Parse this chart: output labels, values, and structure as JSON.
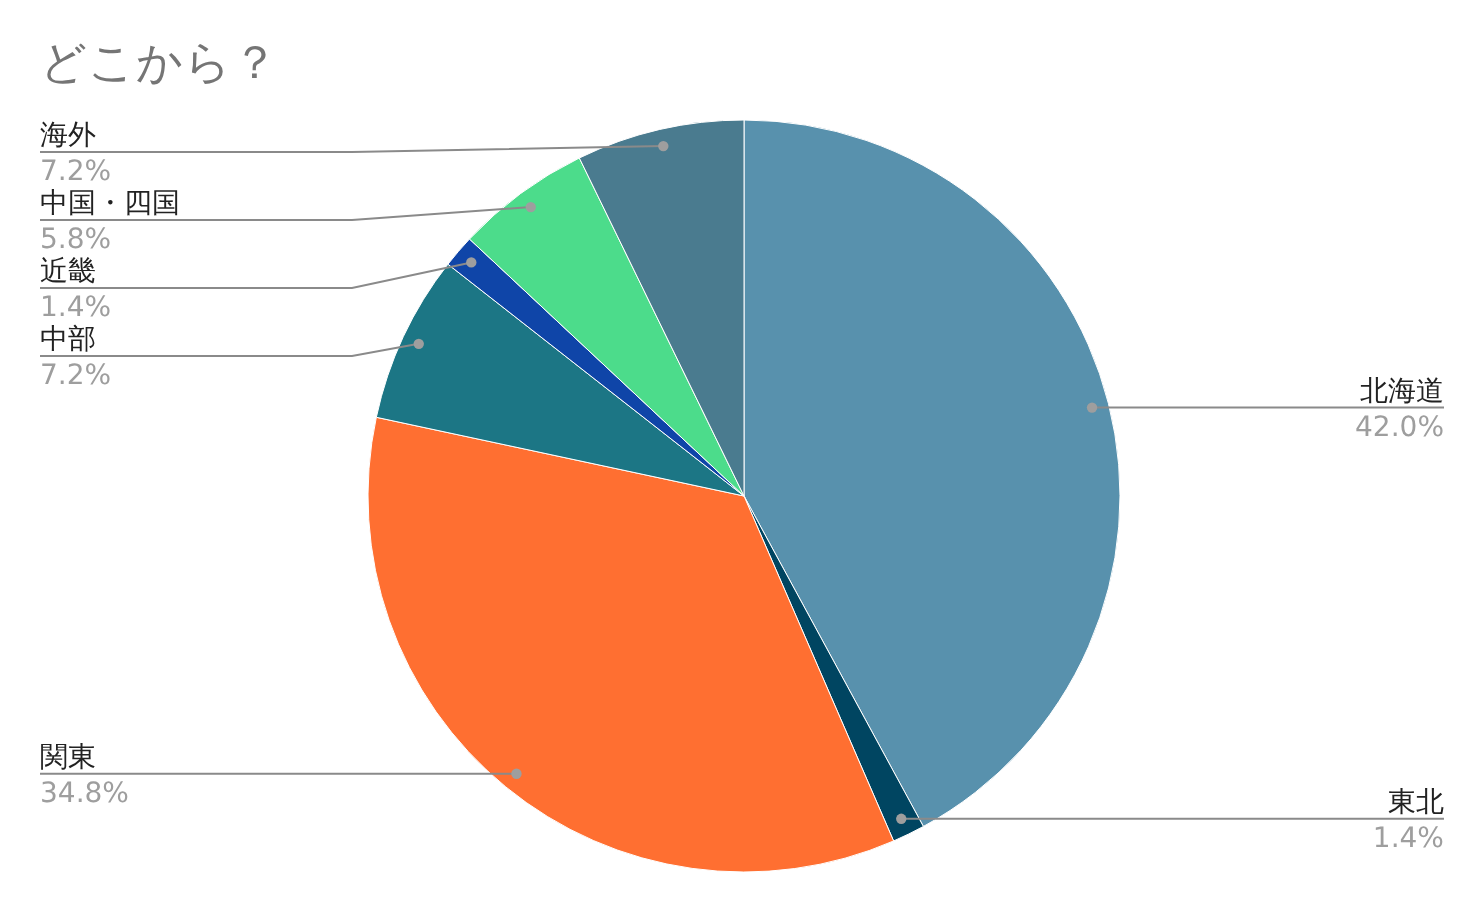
{
  "chart_data": {
    "type": "pie",
    "title": "どこから？",
    "categories": [
      "北海道",
      "東北",
      "関東",
      "中部",
      "近畿",
      "中国・四国",
      "海外"
    ],
    "values": [
      42.0,
      1.4,
      34.8,
      7.2,
      1.4,
      5.8,
      7.2
    ],
    "colors": [
      "#5891ad",
      "#004561",
      "#ff6f31",
      "#1c7685",
      "#0f45a8",
      "#4cdc8b",
      "#4a7b8f"
    ],
    "value_labels": [
      "42.0%",
      "1.4%",
      "34.8%",
      "7.2%",
      "1.4%",
      "5.8%",
      "7.2%"
    ]
  }
}
